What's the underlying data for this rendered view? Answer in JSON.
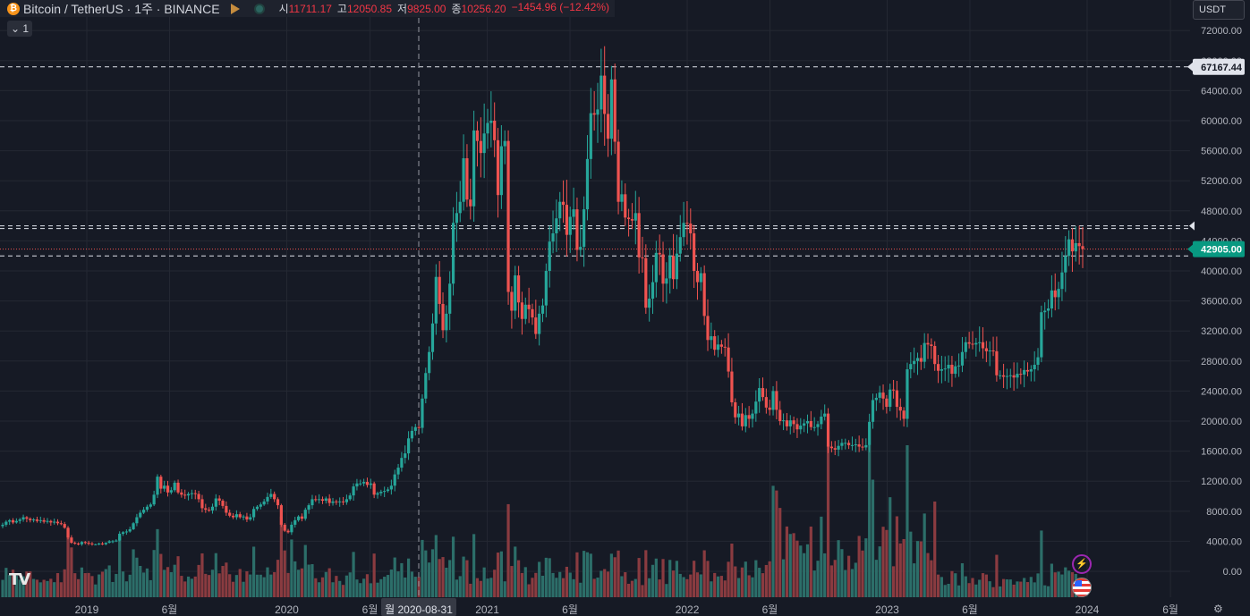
{
  "header": {
    "symbol": "Bitcoin / TetherUS · 1주 · BINANCE",
    "open_label": "시",
    "open": "11711.17",
    "high_label": "고",
    "high": "12050.85",
    "low_label": "저",
    "low": "9825.00",
    "close_label": "종",
    "close": "10256.20",
    "change": "−1454.96 (−12.42%)",
    "collapse": "⌄ 1"
  },
  "currency_button": "USDT",
  "crosshair_date": "월 2020-08-31",
  "price_tags": {
    "ref": "67167.44",
    "last": "42905.00"
  },
  "colors": {
    "up": "#26a69a",
    "down": "#ef5350",
    "volUp": "#2c6e69",
    "volDown": "#8a3b40",
    "bg": "#161a25",
    "grid": "#242833",
    "axisText": "#b2b5be",
    "lastTag": "#089981"
  },
  "chart_data": {
    "type": "candlestick",
    "y_ticks": [
      0,
      4000,
      8000,
      12000,
      16000,
      20000,
      24000,
      28000,
      32000,
      36000,
      40000,
      44000,
      48000,
      52000,
      56000,
      60000,
      64000,
      68000,
      72000
    ],
    "y_tick_labels": [
      "0.00",
      "4000.00",
      "8000.00",
      "12000.00",
      "16000.00",
      "20000.00",
      "24000.00",
      "28000.00",
      "32000.00",
      "36000.00",
      "40000.00",
      "44000.00",
      "48000.00",
      "52000.00",
      "56000.00",
      "60000.00",
      "64000.00",
      "68000.00",
      "72000.00"
    ],
    "x_ticks": [
      {
        "label": "2019",
        "date": "2019-01-01"
      },
      {
        "label": "6월",
        "date": "2019-06-01"
      },
      {
        "label": "2020",
        "date": "2020-01-01"
      },
      {
        "label": "6월",
        "date": "2020-06-01"
      },
      {
        "label": "2021",
        "date": "2021-01-01"
      },
      {
        "label": "6월",
        "date": "2021-06-01"
      },
      {
        "label": "2022",
        "date": "2022-01-01"
      },
      {
        "label": "6월",
        "date": "2022-06-01"
      },
      {
        "label": "2023",
        "date": "2023-01-01"
      },
      {
        "label": "6월",
        "date": "2023-06-01"
      },
      {
        "label": "2024",
        "date": "2024-01-01"
      },
      {
        "label": "6월",
        "date": "2024-06-01"
      }
    ],
    "horizontal_lines": [
      67167.44,
      46000,
      42000
    ],
    "last_price": 42905.0,
    "crosshair": {
      "date": "2020-08-31"
    },
    "closes_weekly": [
      6200,
      6600,
      6800,
      6500,
      6700,
      6900,
      7200,
      7000,
      6800,
      6900,
      6700,
      6800,
      6600,
      6700,
      6500,
      6600,
      6400,
      6300,
      5800,
      4500,
      3800,
      3700,
      3600,
      3900,
      3800,
      3700,
      3600,
      3600,
      3700,
      3600,
      3800,
      4000,
      4000,
      4100,
      5000,
      5200,
      5300,
      5600,
      6400,
      7200,
      7800,
      8200,
      8600,
      8900,
      10200,
      12600,
      11000,
      11400,
      10500,
      10800,
      11800,
      10500,
      10200,
      10100,
      10300,
      10400,
      10300,
      9600,
      8400,
      8200,
      8100,
      8600,
      9700,
      9400,
      8700,
      7800,
      7400,
      7200,
      7600,
      7200,
      7300,
      6900,
      7200,
      8300,
      8600,
      8900,
      9300,
      9900,
      10300,
      9600,
      8800,
      6200,
      5400,
      5200,
      6200,
      6800,
      7300,
      7000,
      8200,
      8800,
      9600,
      9500,
      9600,
      9400,
      9700,
      9100,
      9300,
      9200,
      9300,
      9200,
      9600,
      10100,
      11300,
      11700,
      11700,
      11900,
      11500,
      11700,
      10200,
      10400,
      10600,
      10700,
      10900,
      11400,
      12900,
      13800,
      15100,
      15700,
      17700,
      18700,
      19200,
      19100,
      23000,
      26400,
      29200,
      33000,
      39200,
      35600,
      32100,
      34300,
      38300,
      46400,
      47700,
      49200,
      55000,
      49500,
      48600,
      58700,
      57300,
      55700,
      58300,
      59700,
      60000,
      57400,
      50100,
      56600,
      57300,
      37200,
      34700,
      39400,
      35800,
      33600,
      35500,
      34900,
      33800,
      31600,
      34300,
      35400,
      40000,
      43900,
      45000,
      47000,
      49200,
      48800,
      44800,
      47200,
      48200,
      42800,
      43200,
      48200,
      54900,
      61000,
      60800,
      61500,
      66000,
      60900,
      57600,
      65500,
      57200,
      49200,
      50200,
      47100,
      46900,
      46700,
      47700,
      41800,
      41700,
      35100,
      36300,
      38500,
      42400,
      42200,
      38300,
      39000,
      42000,
      38900,
      42300,
      44500,
      46400,
      46300,
      45000,
      40000,
      38500,
      39700,
      34000,
      30800,
      31300,
      29500,
      30200,
      29900,
      29800,
      26600,
      22500,
      20500,
      21000,
      19300,
      20800,
      20300,
      21000,
      22600,
      24400,
      23200,
      21800,
      21500,
      24000,
      21500,
      20000,
      20100,
      19300,
      20100,
      19600,
      18900,
      19400,
      19700,
      20000,
      19200,
      19200,
      19600,
      20600,
      21000,
      16600,
      16400,
      16200,
      16700,
      17100,
      17100,
      16800,
      16800,
      16900,
      16600,
      16500,
      16800,
      19900,
      22800,
      23100,
      23800,
      23000,
      21900,
      24200,
      24100,
      21900,
      21400,
      20300,
      26900,
      27600,
      28000,
      28400,
      27900,
      30400,
      30200,
      30000,
      27600,
      26700,
      26900,
      27000,
      27500,
      26300,
      27300,
      27400,
      29200,
      30500,
      30300,
      30200,
      30400,
      30500,
      29700,
      29300,
      29400,
      29300,
      26100,
      26100,
      25900,
      26000,
      26100,
      25800,
      26300,
      26200,
      26800,
      26600,
      26900,
      27500,
      28500,
      34500,
      34700,
      35000,
      37400,
      36500,
      37600,
      39800,
      42000,
      44200,
      42600,
      43700,
      43300,
      42905
    ],
    "volume_max": 14000000
  }
}
